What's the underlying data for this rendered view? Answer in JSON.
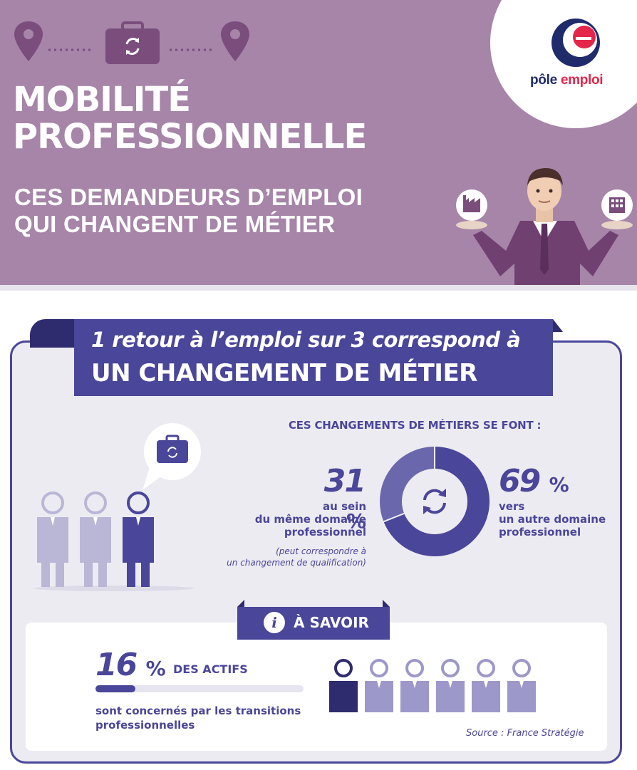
{
  "colors": {
    "header_bg": "#a685a8",
    "primary": "#4a4699",
    "panel_bg": "#ecebf2",
    "logo_red": "#e3264a",
    "logo_navy": "#1f2b6b"
  },
  "header": {
    "title_line1": "MOBILITÉ",
    "title_line2": "PROFESSIONNELLE",
    "subtitle_line1": "CES DEMANDEURS D’EMPLOI",
    "subtitle_line2": "QUI CHANGENT DE MÉTIER",
    "icons": [
      "map-pin-icon",
      "briefcase-icon",
      "map-pin-icon",
      "factory-icon",
      "office-building-icon"
    ]
  },
  "logo": {
    "part1": "pôle",
    "part2": "emploi"
  },
  "banner": {
    "line1": "1 retour à l’emploi sur 3 correspond à",
    "line2": "UN CHANGEMENT DE MÉTIER"
  },
  "changes": {
    "heading": "CES CHANGEMENTS DE MÉTIERS SE FONT :",
    "same_domain": {
      "value": "31",
      "unit": "%",
      "line1": "au sein",
      "line2": "du même domaine",
      "line3": "professionnel",
      "note_line1": "(peut correspondre à",
      "note_line2": "un changement de qualification)"
    },
    "other_domain": {
      "value": "69",
      "unit": "%",
      "line1": "vers",
      "line2": "un autre domaine",
      "line3": "professionnel"
    }
  },
  "chart_data": {
    "type": "pie",
    "categories": [
      "au sein du même domaine professionnel",
      "vers un autre domaine professionnel"
    ],
    "values": [
      31,
      69
    ],
    "title": "CES CHANGEMENTS DE MÉTIERS SE FONT :"
  },
  "savoir": {
    "label": "À SAVOIR",
    "info_glyph": "i",
    "value": "16",
    "unit": "%",
    "actifs": "DES ACTIFS",
    "progress_fraction": 0.16,
    "line1": "sont concernés par les transitions",
    "line2": "professionnelles",
    "source": "Source : France Stratégie"
  }
}
